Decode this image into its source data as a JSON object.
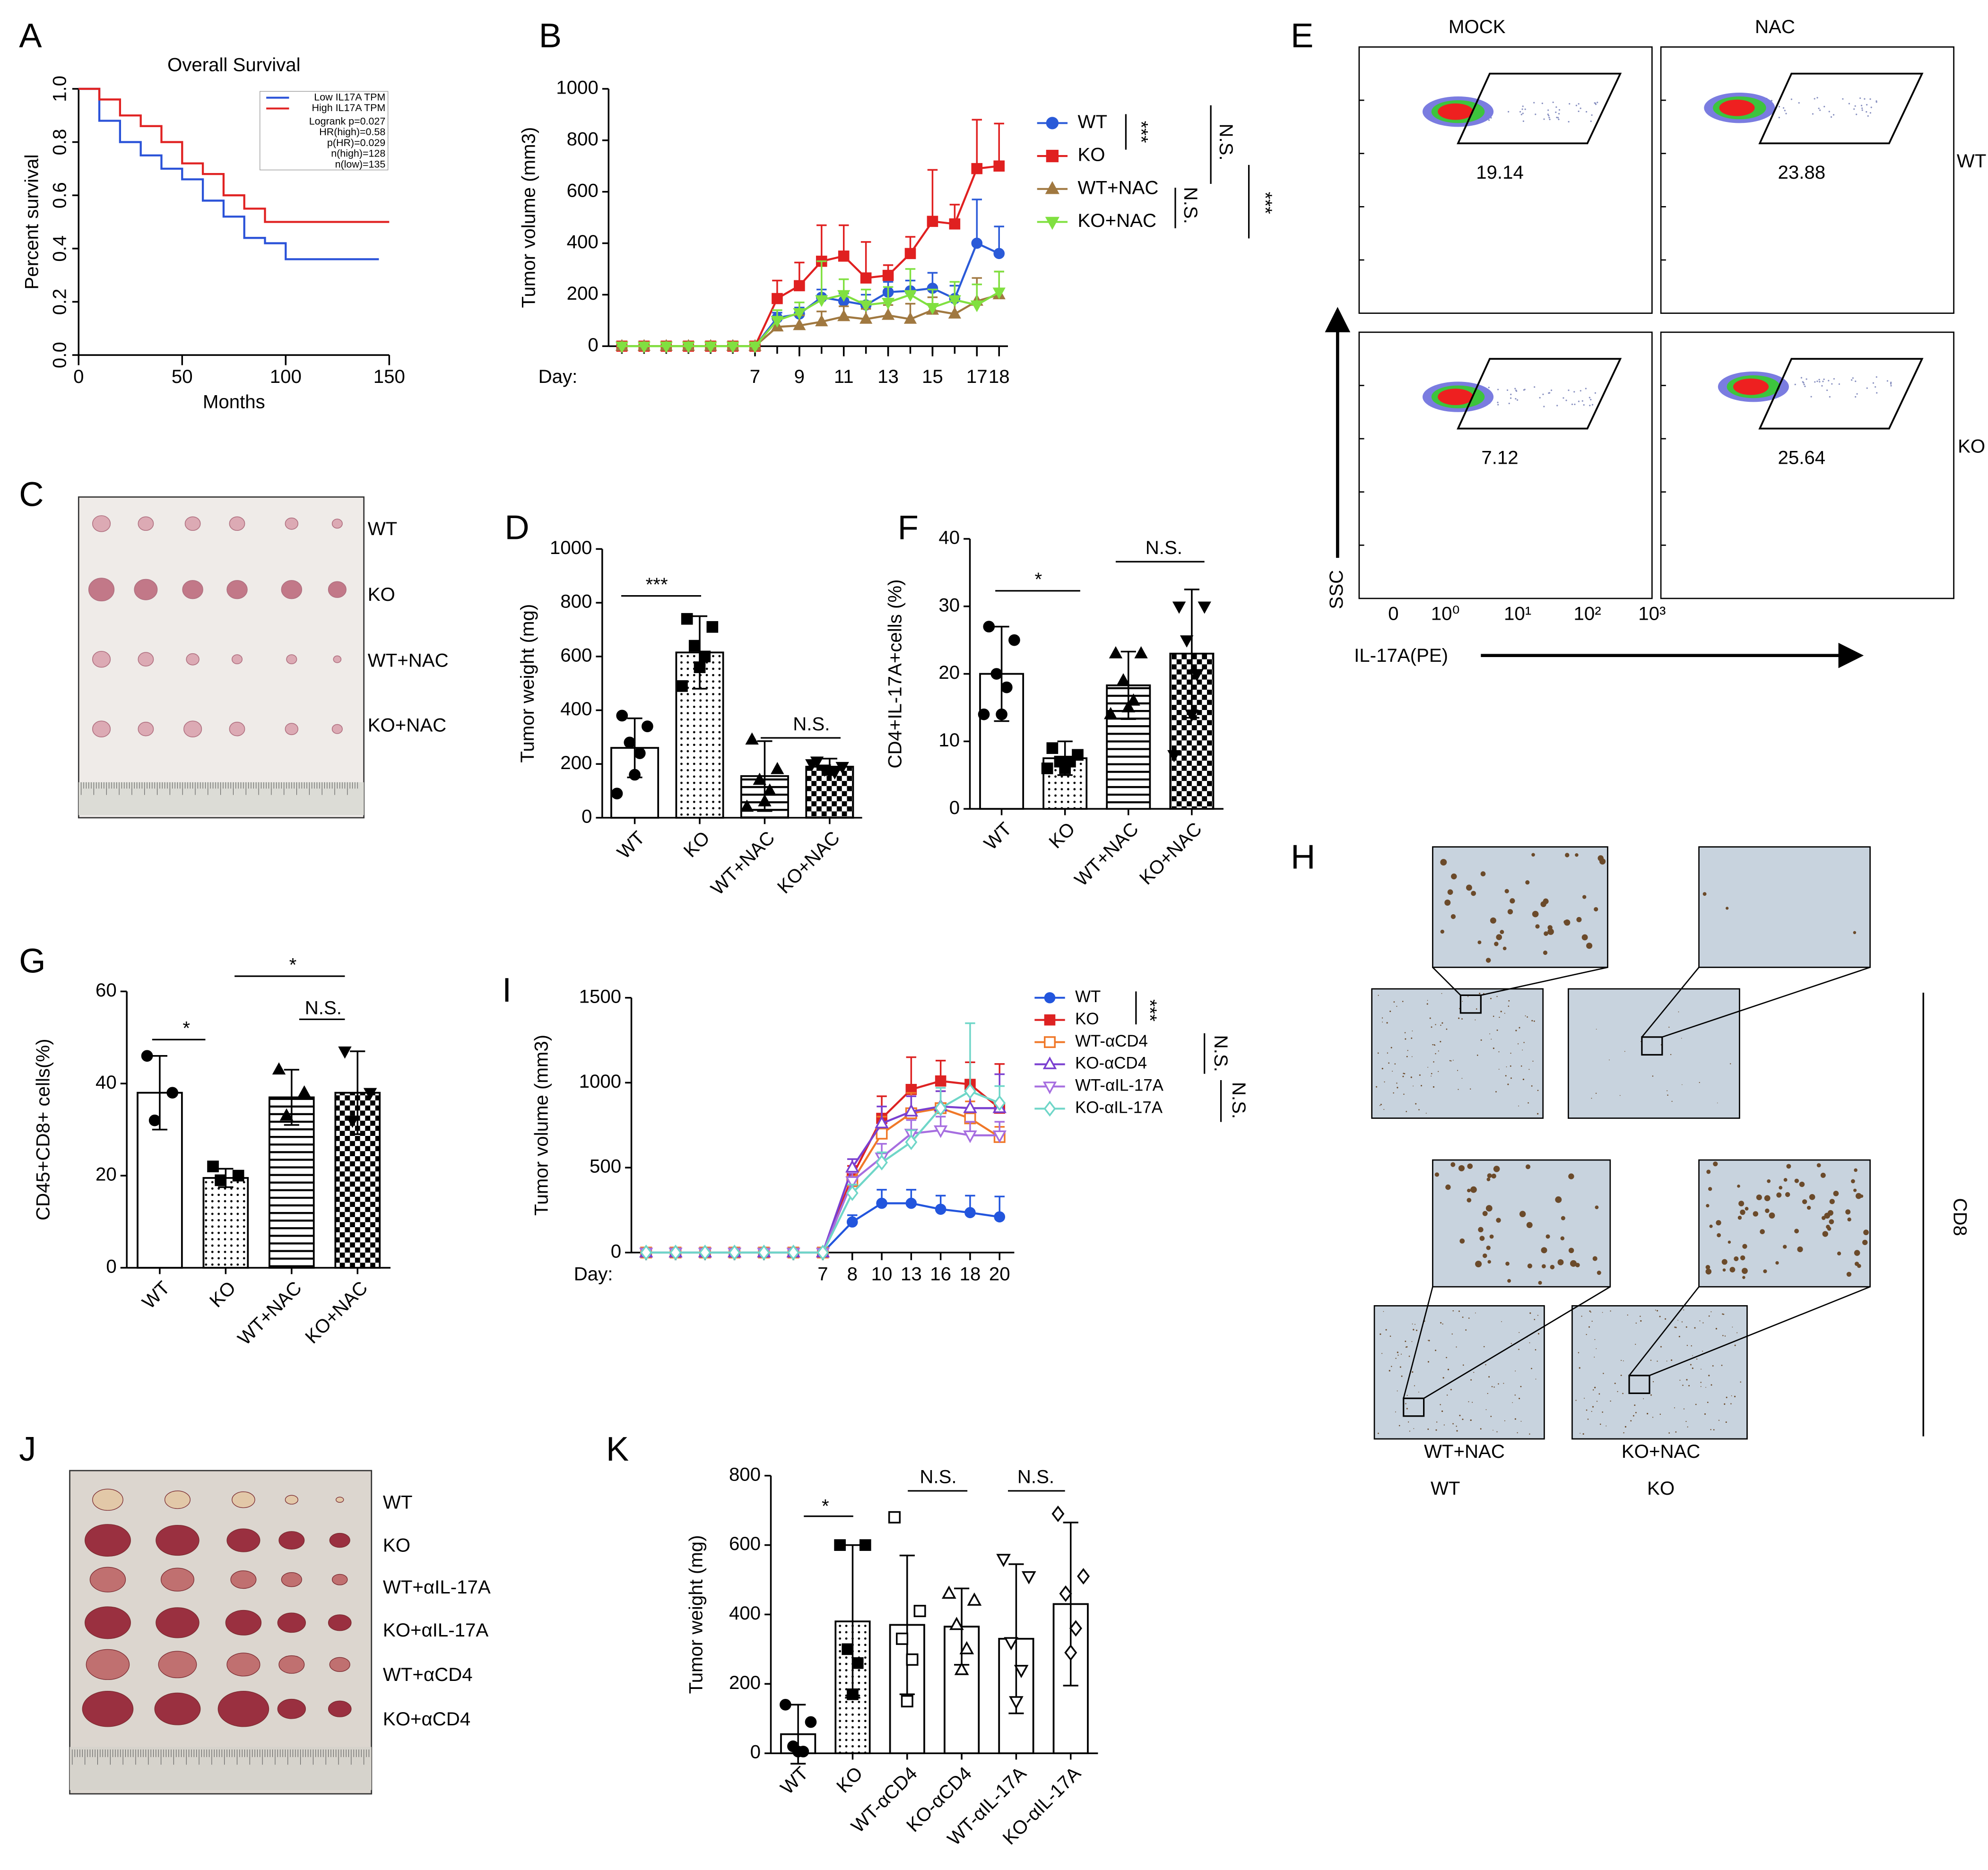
{
  "panel_letters": [
    "A",
    "B",
    "C",
    "D",
    "E",
    "F",
    "G",
    "H",
    "I",
    "J",
    "K"
  ],
  "chart_data": [
    {
      "type": "step",
      "title": "Overall Survival",
      "x_label": "Months",
      "y_label": "Percent survival",
      "x": [
        0,
        10,
        20,
        30,
        40,
        50,
        60,
        70,
        80,
        90,
        100,
        110,
        120,
        130,
        145,
        150
      ],
      "series": [
        {
          "name": "Low IL17A TPM",
          "color": "#2a52d8",
          "values": [
            1.0,
            0.88,
            0.8,
            0.75,
            0.7,
            0.66,
            0.58,
            0.52,
            0.44,
            0.42,
            0.36,
            0.36,
            0.36,
            0.36,
            0.36,
            null
          ]
        },
        {
          "name": "High IL17A TPM",
          "color": "#e02222",
          "values": [
            1.0,
            0.96,
            0.9,
            0.86,
            0.8,
            0.72,
            0.68,
            0.6,
            0.55,
            0.5,
            0.5,
            0.5,
            0.5,
            0.5,
            0.5,
            0.5
          ]
        }
      ],
      "annotations": [
        "Logrank p=0.027",
        "HR(high)=0.58",
        "p(HR)=0.029",
        "n(high)=128",
        "n(low)=135"
      ],
      "xlim": [
        0,
        150
      ],
      "xticks": [
        0,
        50,
        100,
        150
      ],
      "ylim": [
        0,
        1.0
      ],
      "yticks": [
        {
          "value": 0,
          "label": "0.0"
        },
        {
          "value": 0.2,
          "label": "0.2"
        },
        {
          "value": 0.4,
          "label": "0.4"
        },
        {
          "value": 0.6,
          "label": "0.6"
        },
        {
          "value": 0.8,
          "label": "0.8"
        },
        {
          "value": 1.0,
          "label": "1.0"
        }
      ]
    },
    {
      "type": "line",
      "x_label": "Day:",
      "y_label": "Tumor volume (mm3)",
      "x": [
        1,
        2,
        3,
        4,
        5,
        6,
        7,
        8,
        9,
        10,
        11,
        12,
        13,
        14,
        15,
        16,
        17,
        18
      ],
      "series": [
        {
          "name": "WT",
          "color": "#2a5ad8",
          "marker": "circle",
          "values": [
            0,
            0,
            0,
            0,
            0,
            0,
            0,
            110,
            125,
            190,
            175,
            160,
            210,
            215,
            225,
            185,
            400,
            360
          ],
          "errors": [
            0,
            0,
            0,
            0,
            0,
            0,
            0,
            20,
            25,
            30,
            30,
            40,
            40,
            40,
            60,
            50,
            170,
            105
          ]
        },
        {
          "name": "KO",
          "color": "#e02020",
          "marker": "square",
          "values": [
            0,
            0,
            0,
            0,
            0,
            0,
            0,
            185,
            235,
            330,
            350,
            265,
            275,
            360,
            485,
            475,
            690,
            700
          ],
          "errors": [
            0,
            0,
            0,
            0,
            0,
            0,
            0,
            70,
            90,
            140,
            120,
            140,
            40,
            65,
            200,
            75,
            190,
            165
          ]
        },
        {
          "name": "WT+NAC",
          "color": "#a07840",
          "marker": "triangle",
          "values": [
            0,
            0,
            0,
            0,
            0,
            0,
            0,
            75,
            80,
            95,
            115,
            105,
            120,
            105,
            140,
            125,
            175,
            200
          ],
          "errors": [
            0,
            0,
            0,
            0,
            0,
            0,
            0,
            30,
            40,
            40,
            40,
            40,
            40,
            60,
            50,
            50,
            90,
            90
          ]
        },
        {
          "name": "KO+NAC",
          "color": "#80e040",
          "marker": "tri-down",
          "values": [
            0,
            0,
            0,
            0,
            0,
            0,
            0,
            100,
            130,
            180,
            200,
            160,
            170,
            200,
            150,
            180,
            160,
            210
          ],
          "errors": [
            0,
            0,
            0,
            0,
            0,
            0,
            0,
            40,
            40,
            150,
            60,
            60,
            60,
            100,
            70,
            70,
            80,
            80
          ]
        }
      ],
      "annotations": [
        "***",
        "N.S.",
        "N.S.",
        "***"
      ],
      "xlim": [
        0.4,
        18.4
      ],
      "xticks": [
        7,
        9,
        11,
        13,
        15,
        17,
        18
      ],
      "ylim": [
        0,
        1000
      ],
      "yticks": [
        0,
        200,
        400,
        600,
        800,
        1000
      ]
    },
    {
      "type": "bar",
      "y_label": "Tumor weight (mg)",
      "categories": [
        "WT",
        "KO",
        "WT+NAC",
        "KO+NAC"
      ],
      "values": [
        260,
        615,
        155,
        190
      ],
      "errors": [
        110,
        135,
        130,
        30
      ],
      "patterns": [
        "none",
        "dots",
        "hlines",
        "checker"
      ],
      "edge_color": "#000000",
      "point_color": "#000000",
      "point_markers": [
        "circle",
        "square",
        "triangle",
        "tri-down"
      ],
      "points": [
        [
          380,
          340,
          280,
          240,
          160,
          90
        ],
        [
          740,
          710,
          640,
          600,
          560,
          490
        ],
        [
          290,
          180,
          140,
          100,
          60,
          40
        ],
        [
          210,
          190,
          180,
          170,
          170,
          200
        ]
      ],
      "annotations": [
        "***",
        "N.S."
      ],
      "ylim": [
        0,
        1000
      ],
      "yticks": [
        0,
        200,
        400,
        600,
        800,
        1000
      ]
    },
    {
      "type": "bar",
      "y_label": "CD4+IL-17A+cells (%)",
      "categories": [
        "WT",
        "KO",
        "WT+NAC",
        "KO+NAC"
      ],
      "values": [
        20,
        7.5,
        18.3,
        23
      ],
      "errors": [
        7,
        2.5,
        5,
        9.5
      ],
      "patterns": [
        "none",
        "dots",
        "hlines",
        "checker"
      ],
      "edge_color": "#000000",
      "point_color": "#000000",
      "point_markers": [
        "circle",
        "square",
        "triangle",
        "tri-down"
      ],
      "points": [
        [
          27,
          25,
          20,
          18,
          14,
          14
        ],
        [
          9,
          8,
          7,
          7,
          6,
          6
        ],
        [
          23,
          23,
          19,
          16,
          15,
          14
        ],
        [
          30,
          30,
          25,
          20,
          14,
          8
        ]
      ],
      "annotations": [
        "*",
        "N.S."
      ],
      "ylim": [
        0,
        40
      ],
      "yticks": [
        0,
        10,
        20,
        30,
        40
      ]
    },
    {
      "type": "bar",
      "y_label": "CD45+CD8+ cells(%)",
      "categories": [
        "WT",
        "KO",
        "WT+NAC",
        "KO+NAC"
      ],
      "values": [
        38,
        19.5,
        37,
        38
      ],
      "errors": [
        8,
        2,
        6,
        9
      ],
      "patterns": [
        "none",
        "dots",
        "hlines",
        "checker"
      ],
      "edge_color": "#000000",
      "point_color": "#000000",
      "point_markers": [
        "circle",
        "square",
        "triangle",
        "tri-down"
      ],
      "points": [
        [
          46,
          38,
          32
        ],
        [
          22,
          20,
          19
        ],
        [
          43,
          38,
          33
        ],
        [
          47,
          38,
          32
        ]
      ],
      "annotations": [
        "*",
        "*",
        "N.S."
      ],
      "ylim": [
        0,
        60
      ],
      "yticks": [
        0,
        20,
        40,
        60
      ]
    },
    {
      "type": "line",
      "x_label": "Day:",
      "y_label": "Tumor volume (mm3)",
      "categories": [
        null,
        null,
        null,
        null,
        null,
        null,
        "7",
        "8",
        "10",
        "13",
        "16",
        "18",
        "20"
      ],
      "series": [
        {
          "name": "WT",
          "color": "#2255dd",
          "marker": "circle",
          "values": [
            0,
            0,
            0,
            0,
            0,
            0,
            0,
            180,
            290,
            290,
            255,
            235,
            210
          ],
          "errors": [
            0,
            0,
            0,
            0,
            0,
            0,
            0,
            40,
            80,
            80,
            80,
            100,
            120
          ]
        },
        {
          "name": "KO",
          "color": "#dd2222",
          "marker": "square",
          "values": [
            0,
            0,
            0,
            0,
            0,
            0,
            0,
            450,
            790,
            960,
            1010,
            990,
            850
          ],
          "errors": [
            0,
            0,
            0,
            0,
            0,
            0,
            0,
            60,
            130,
            190,
            120,
            130,
            260
          ]
        },
        {
          "name": "WT-αCD4",
          "color": "#f07828",
          "marker": "open-square",
          "values": [
            0,
            0,
            0,
            0,
            0,
            0,
            0,
            420,
            700,
            820,
            850,
            790,
            680
          ],
          "errors": [
            0,
            0,
            0,
            0,
            0,
            0,
            0,
            60,
            100,
            120,
            100,
            100,
            60
          ]
        },
        {
          "name": "KO-αCD4",
          "color": "#7a3fd0",
          "marker": "open-triangle",
          "values": [
            0,
            0,
            0,
            0,
            0,
            0,
            0,
            500,
            760,
            830,
            860,
            850,
            850
          ],
          "errors": [
            0,
            0,
            0,
            0,
            0,
            0,
            0,
            50,
            100,
            90,
            90,
            100,
            200
          ]
        },
        {
          "name": "WT-αIL-17A",
          "color": "#a66ee0",
          "marker": "open-tri-down",
          "values": [
            0,
            0,
            0,
            0,
            0,
            0,
            0,
            420,
            560,
            700,
            720,
            690,
            690
          ],
          "errors": [
            0,
            0,
            0,
            0,
            0,
            0,
            0,
            50,
            80,
            80,
            80,
            80,
            80
          ]
        },
        {
          "name": "KO-αIL-17A",
          "color": "#6fd6c8",
          "marker": "open-diamond",
          "values": [
            0,
            0,
            0,
            0,
            0,
            0,
            0,
            350,
            530,
            650,
            850,
            950,
            880
          ],
          "errors": [
            0,
            0,
            0,
            0,
            0,
            0,
            0,
            50,
            60,
            70,
            120,
            400,
            100
          ]
        }
      ],
      "annotations": [
        "***",
        "N.S.",
        "N.S."
      ],
      "ylim": [
        0,
        1500
      ],
      "yticks": [
        0,
        500,
        1000,
        1500
      ]
    },
    {
      "type": "bar",
      "y_label": "Tumor weight  (mg)",
      "categories": [
        "WT",
        "KO",
        "WT-αCD4",
        "KO-αCD4",
        "WT-αIL-17A",
        "KO-αIL-17A"
      ],
      "values": [
        55,
        380,
        370,
        365,
        330,
        430
      ],
      "errors": [
        85,
        220,
        200,
        110,
        215,
        235
      ],
      "patterns": [
        "none",
        "dots",
        "none",
        "none",
        "none",
        "none"
      ],
      "edge_color": "#000000",
      "point_color": "#000000",
      "point_markers": [
        "circle",
        "square",
        "open-square",
        "open-triangle",
        "open-tri-down",
        "open-diamond"
      ],
      "points": [
        [
          140,
          90,
          20,
          5,
          5
        ],
        [
          600,
          600,
          300,
          260,
          170
        ],
        [
          680,
          410,
          330,
          270,
          150
        ],
        [
          460,
          440,
          370,
          300,
          240
        ],
        [
          560,
          510,
          320,
          240,
          150
        ],
        [
          690,
          510,
          460,
          360,
          290
        ]
      ],
      "annotations": [
        "*",
        "N.S.",
        "N.S."
      ],
      "ylim": [
        0,
        800
      ],
      "yticks": [
        0,
        200,
        400,
        600,
        800
      ]
    }
  ],
  "photo_C": {
    "labels": [
      "WT",
      "KO",
      "WT+NAC",
      "KO+NAC"
    ]
  },
  "photo_J": {
    "labels": [
      "WT",
      "KO",
      "WT+αIL-17A",
      "KO+αIL-17A",
      "WT+αCD4",
      "KO+αCD4"
    ]
  },
  "photo_H": {
    "labels": [
      "WT",
      "KO",
      "WT+NAC",
      "KO+NAC"
    ],
    "stain": "CD8"
  },
  "flow_E": {
    "columns": [
      "MOCK",
      "NAC"
    ],
    "rows": [
      "WT",
      "KO"
    ],
    "gates": [
      19.14,
      23.88,
      7.12,
      25.64
    ],
    "x_ticks": [
      "0",
      "10⁰",
      "10¹",
      "10²",
      "10³"
    ],
    "y_label": "SSC",
    "x_label": "IL-17A(PE)"
  }
}
